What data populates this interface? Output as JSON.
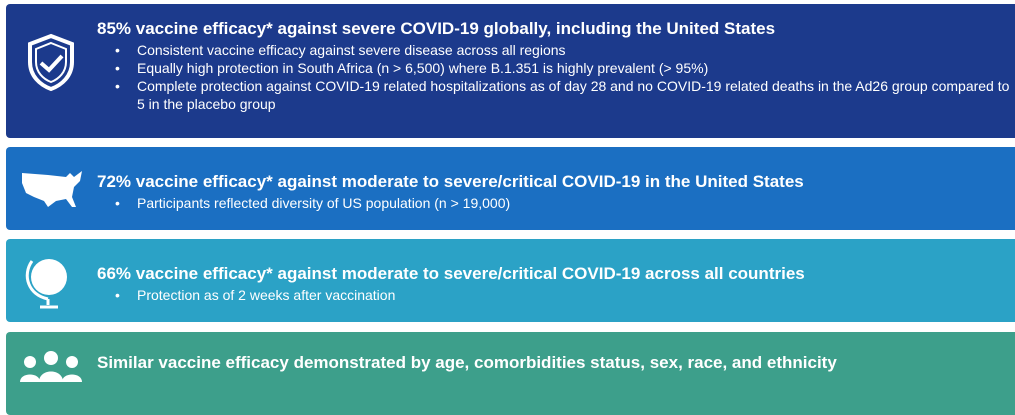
{
  "panels": [
    {
      "title": "85% vaccine efficacy* against severe COVID-19 globally, including the United States",
      "bullets": [
        "Consistent vaccine efficacy against severe disease across all regions",
        "Equally high protection in South Africa (n > 6,500) where B.1.351 is highly prevalent (> 95%)",
        "Complete protection against COVID-19 related hospitalizations as of day 28 and no COVID-19 related deaths in the Ad26 group compared to 5 in the placebo group"
      ]
    },
    {
      "title": "72% vaccine efficacy* against moderate to severe/critical COVID-19 in the United States",
      "bullets": [
        "Participants reflected diversity of US population (n > 19,000)"
      ]
    },
    {
      "title": "66% vaccine efficacy* against moderate to severe/critical COVID-19 across all countries",
      "bullets": [
        "Protection as of 2 weeks after vaccination"
      ]
    },
    {
      "title": "Similar vaccine efficacy demonstrated by age, comorbidities status, sex, race, and ethnicity",
      "bullets": []
    }
  ]
}
